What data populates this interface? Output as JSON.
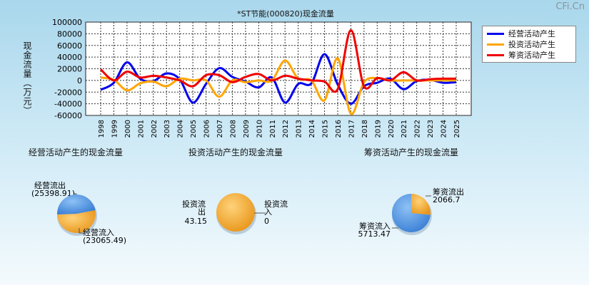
{
  "watermark": "CFi.Cn",
  "chart_data": [
    {
      "type": "line",
      "title": "*ST节能(000820)现金流量",
      "ylabel": "现金流量（万元）",
      "ylim": [
        -60000,
        100000
      ],
      "yticks": [
        100000,
        80000,
        60000,
        40000,
        20000,
        0,
        -20000,
        -40000,
        -60000
      ],
      "x": [
        "1998",
        "1999",
        "2000",
        "2001",
        "2002",
        "2003",
        "2004",
        "2005",
        "2006",
        "2007",
        "2008",
        "2009",
        "2010",
        "2011",
        "2012",
        "2013",
        "2014",
        "2015",
        "2016",
        "2017",
        "2018",
        "2019",
        "2020",
        "2021",
        "2022",
        "2023",
        "2024",
        "2025"
      ],
      "grid": true,
      "legend_position": "top-right",
      "series": [
        {
          "name": "经营活动产生",
          "color": "#0000ee",
          "values": [
            -16000,
            -4000,
            31000,
            3000,
            -1000,
            12000,
            2000,
            -38000,
            -6000,
            21000,
            6000,
            -2000,
            -12000,
            5000,
            -38000,
            -6000,
            -5000,
            45000,
            -7000,
            -40000,
            -10000,
            -4000,
            3000,
            -15000,
            -1000,
            1000,
            -4000,
            -3000
          ]
        },
        {
          "name": "投资活动产生",
          "color": "#ffa500",
          "values": [
            5000,
            1000,
            -17000,
            -5000,
            -2000,
            -10000,
            3000,
            0,
            0,
            -28000,
            0,
            -3000,
            0,
            0,
            34000,
            3000,
            0,
            -34000,
            38000,
            -57000,
            -3000,
            4000,
            0,
            0,
            0,
            0,
            0,
            0
          ]
        },
        {
          "name": "筹资活动产生",
          "color": "#ee0000",
          "values": [
            19000,
            0,
            15000,
            5000,
            8000,
            5000,
            0,
            -10000,
            9000,
            9000,
            -3000,
            6000,
            11000,
            0,
            8000,
            3000,
            0,
            -2000,
            -15000,
            86000,
            -10000,
            4000,
            0,
            14000,
            0,
            2000,
            3000,
            3000
          ]
        }
      ]
    },
    {
      "type": "pie",
      "title": "经营活动产生的现金流量",
      "slices": [
        {
          "label": "经营流出",
          "value": 25398.91,
          "value_text": "(25398.91)",
          "color": "#f5a623"
        },
        {
          "label": "经营流入",
          "value": 23065.49,
          "value_text": "(23065.49)",
          "color": "#4a90e2"
        }
      ]
    },
    {
      "type": "pie",
      "title": "投资活动产生的现金流量",
      "slices": [
        {
          "label": "投资流出",
          "value": 43.15,
          "value_text": "43.15",
          "color": "#f5a623"
        },
        {
          "label": "投资流入",
          "value": 0,
          "value_text": "0",
          "color": "#4a90e2"
        }
      ]
    },
    {
      "type": "pie",
      "title": "筹资活动产生的现金流量",
      "slices": [
        {
          "label": "筹资流出",
          "value": 2066.7,
          "value_text": "2066.7",
          "color": "#f5a623"
        },
        {
          "label": "筹资流入",
          "value": 5713.47,
          "value_text": "5713.47",
          "color": "#4a90e2"
        }
      ]
    }
  ]
}
